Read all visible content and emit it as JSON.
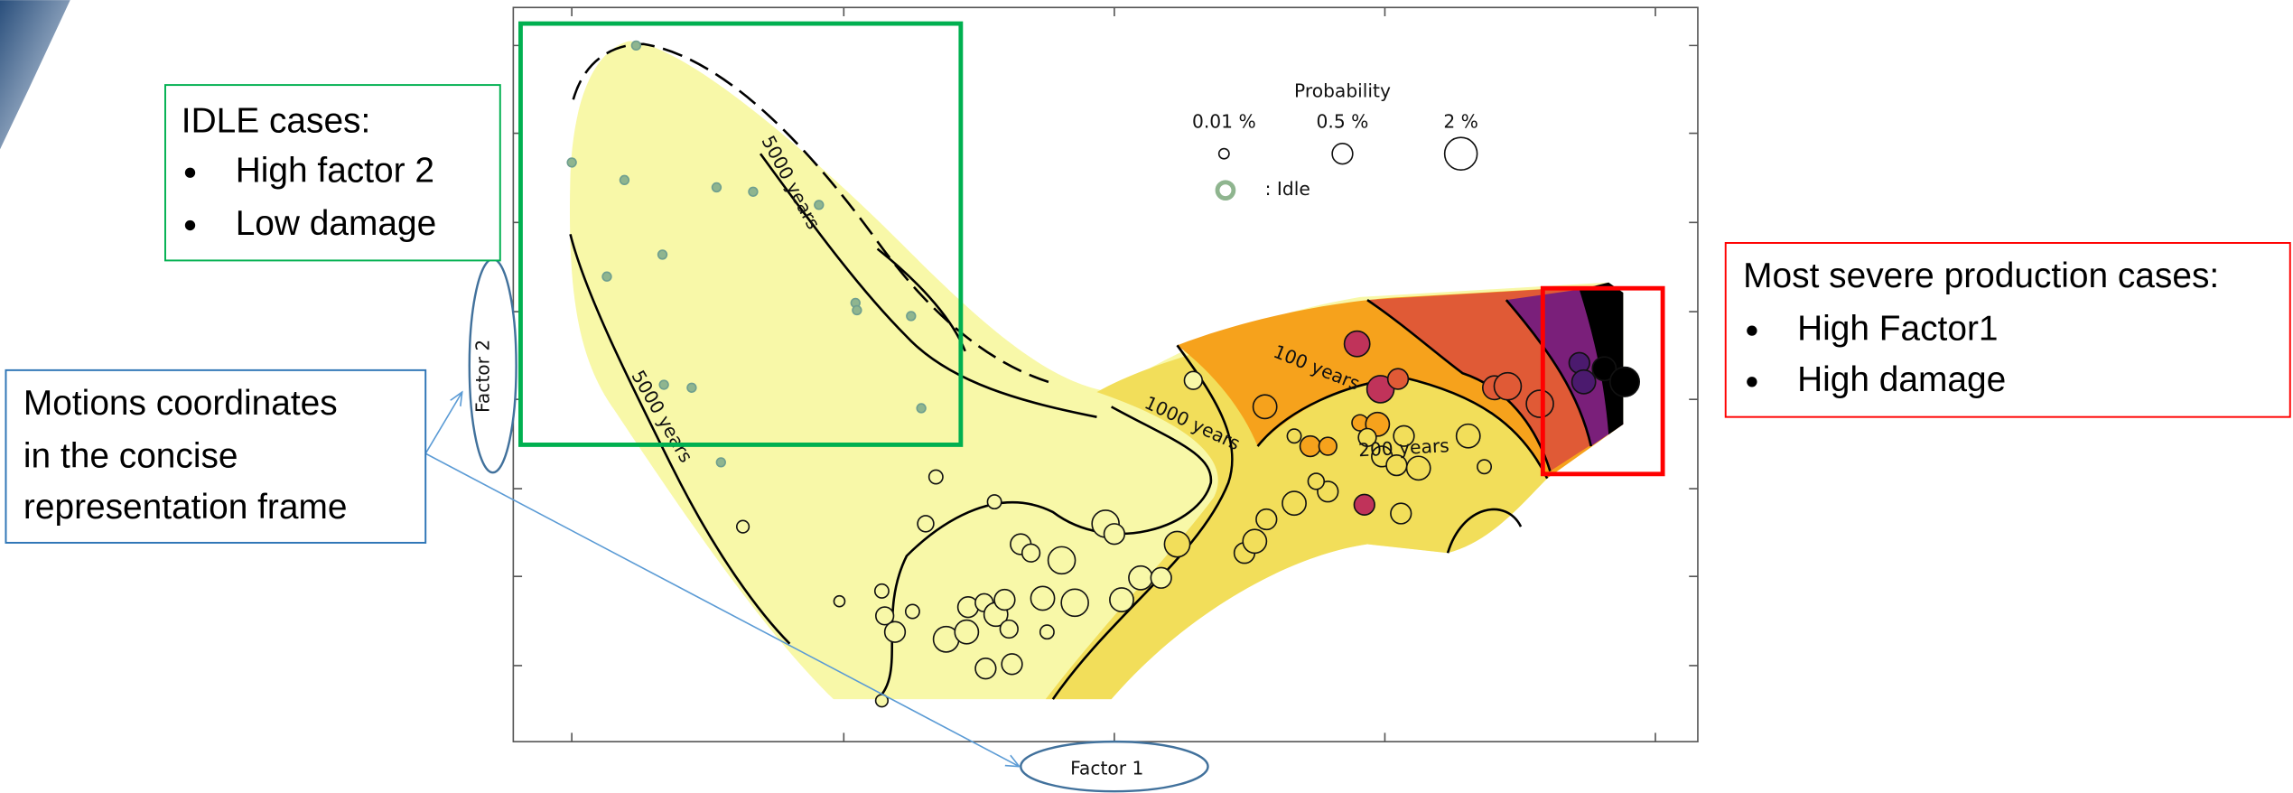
{
  "chart_data": {
    "type": "scatter",
    "x_label": "Factor 1",
    "y_label": "Factor 2",
    "xlim": [
      0,
      810
    ],
    "ylim": [
      0,
      502
    ],
    "size_legend": {
      "title": "Probability",
      "values": [
        {
          "value": 0.01,
          "label": "0.01 %"
        },
        {
          "value": 0.5,
          "label": "0.5 %"
        },
        {
          "value": 2,
          "label": "2 %"
        }
      ]
    },
    "series": [
      {
        "name": ": Idle",
        "color": "#8fb58f",
        "x": [
          84,
          40,
          76,
          139,
          164,
          209,
          102,
          64,
          234,
          235,
          272,
          103,
          122,
          279,
          142
        ],
        "y": [
          476,
          396,
          384,
          379,
          376,
          367,
          333,
          318,
          300,
          295,
          291,
          244,
          242,
          228,
          191
        ]
      },
      {
        "x": [
          289,
          157,
          282,
          329,
          223,
          252,
          254,
          261,
          273,
          296,
          310,
          311,
          322,
          330,
          339,
          336,
          347,
          354,
          362,
          375,
          384,
          365,
          323,
          341,
          252,
          405,
          411,
          416,
          429,
          443,
          454,
          465,
          500,
          507,
          515,
          534,
          557,
          549,
          534,
          514,
          545,
          557,
          579,
          591,
          584,
          594,
          604,
          609,
          619,
          607,
          582,
          653,
          664,
          577,
          593,
          605,
          671,
          680,
          702,
          729,
          732,
          746,
          760
        ],
        "y": [
          181,
          147,
          149,
          164,
          96,
          103,
          86,
          75,
          89,
          70,
          75,
          92,
          95,
          87,
          77,
          97,
          135,
          129,
          98,
          124,
          95,
          75,
          50,
          53,
          28,
          149,
          142,
          97,
          112,
          112,
          135,
          247,
          129,
          137,
          152,
          163,
          171,
          178,
          209,
          229,
          202,
          202,
          218,
          217,
          208,
          195,
          189,
          209,
          187,
          156,
          162,
          209,
          188,
          272,
          241,
          248,
          242,
          243,
          231,
          259,
          246,
          255,
          246
        ],
        "sizes": [
          0.1,
          0.05,
          0.2,
          0.1,
          0.02,
          0.1,
          0.3,
          0.5,
          0.1,
          1.0,
          0.8,
          0.5,
          0.3,
          0.8,
          0.3,
          0.5,
          0.5,
          0.3,
          0.8,
          1.2,
          1.2,
          0.1,
          0.5,
          0.5,
          0.05,
          1.2,
          0.5,
          0.8,
          0.8,
          0.5,
          1.0,
          0.3,
          0.5,
          0.8,
          0.5,
          0.8,
          0.5,
          0.2,
          0.1,
          0.8,
          0.5,
          0.3,
          0.2,
          0.8,
          0.3,
          0.5,
          0.5,
          0.5,
          0.8,
          0.5,
          0.5,
          0.8,
          0.1,
          1.0,
          1.2,
          0.5,
          0.8,
          1.2,
          1.2,
          0.5,
          0.8,
          0.8,
          1.5
        ],
        "colors": [
          "#f8f8a8",
          "#f8f8a8",
          "#f8f8a8",
          "#f8f8a8",
          "#f8f8a8",
          "#f8f8a8",
          "#f8f8a8",
          "#f8f8a8",
          "#f8f8a8",
          "#f8f8a8",
          "#f8f8a8",
          "#f8f8a8",
          "#f8f8a8",
          "#f8f8a8",
          "#f8f8a8",
          "#f8f8a8",
          "#f8f8a8",
          "#f8f8a8",
          "#f8f8a8",
          "#f8f8a8",
          "#f8f8a8",
          "#f8f8a8",
          "#f8f8a8",
          "#f8f8a8",
          "#f8f8a8",
          "#f8f8a8",
          "#f8f8a8",
          "#f8f8a8",
          "#f8f8a8",
          "#f8f8a8",
          "#f2de5a",
          "#f8f8a8",
          "#f2de5a",
          "#f2de5a",
          "#f2de5a",
          "#f2de5a",
          "#f2de5a",
          "#f2de5a",
          "#f2de5a",
          "#f6a21c",
          "#f6a21c",
          "#f6a21c",
          "#f6a21c",
          "#f6a21c",
          "#f2de5a",
          "#f2de5a",
          "#f2de5a",
          "#f2de5a",
          "#f2de5a",
          "#f2de5a",
          "#c0335a",
          "#f2de5a",
          "#f2de5a",
          "#c0335a",
          "#c0335a",
          "#e05a36",
          "#e05a36",
          "#e05a36",
          "#e05a36",
          "#4b1a6e",
          "#4b1a6e",
          "#000000",
          "#000000"
        ]
      }
    ],
    "contour_labels": [
      "5000 years",
      "5000 years",
      "1000 years",
      "100 years",
      "200 years"
    ]
  },
  "annotations": [
    {
      "title": "IDLE cases:",
      "bullets": [
        "High factor 2",
        "Low damage"
      ]
    },
    {
      "lines": [
        "Motions coordinates",
        "in the concise",
        "representation frame"
      ]
    },
    {
      "title": "Most severe production cases:",
      "bullets": [
        "High Factor1",
        "High damage"
      ]
    }
  ]
}
